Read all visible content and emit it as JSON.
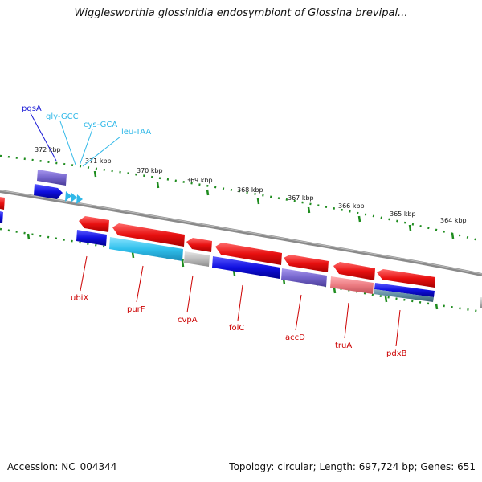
{
  "title": "Wigglesworthia glossinidia endosymbiont of Glossina brevipal...",
  "footer": {
    "accession": "Accession: NC_004344",
    "summary": "Topology: circular; Length: 697,724 bp; Genes: 651"
  },
  "scale_labels": [
    "372 kbp",
    "371 kbp",
    "370 kbp",
    "369 kbp",
    "368 kbp",
    "367 kbp",
    "366 kbp",
    "365 kbp",
    "364 kbp"
  ],
  "outer_labels": {
    "pgsA": "pgsA",
    "gly": "gly-GCC",
    "cys": "cys-GCA",
    "leu": "leu-TAA"
  },
  "inner_labels": {
    "ubiX": "ubiX",
    "purF": "purF",
    "cvpA": "cvpA",
    "folC": "folC",
    "accD": "accD",
    "truA": "truA",
    "pdxB": "pdxB"
  },
  "colors": {
    "backbone": "#8a8a8a",
    "tick": "#1e8c1e",
    "red_gene": "#e01010",
    "blue_gene": "#1010d8",
    "cyan_gene": "#33c0e8",
    "purple_gene": "#7a6ad0",
    "pink_gene": "#e87a80",
    "gray_gene": "#b8b8b8",
    "label_red": "#cc0000",
    "label_blue": "#1a1ad6",
    "label_cyan": "#2fb8e8"
  }
}
